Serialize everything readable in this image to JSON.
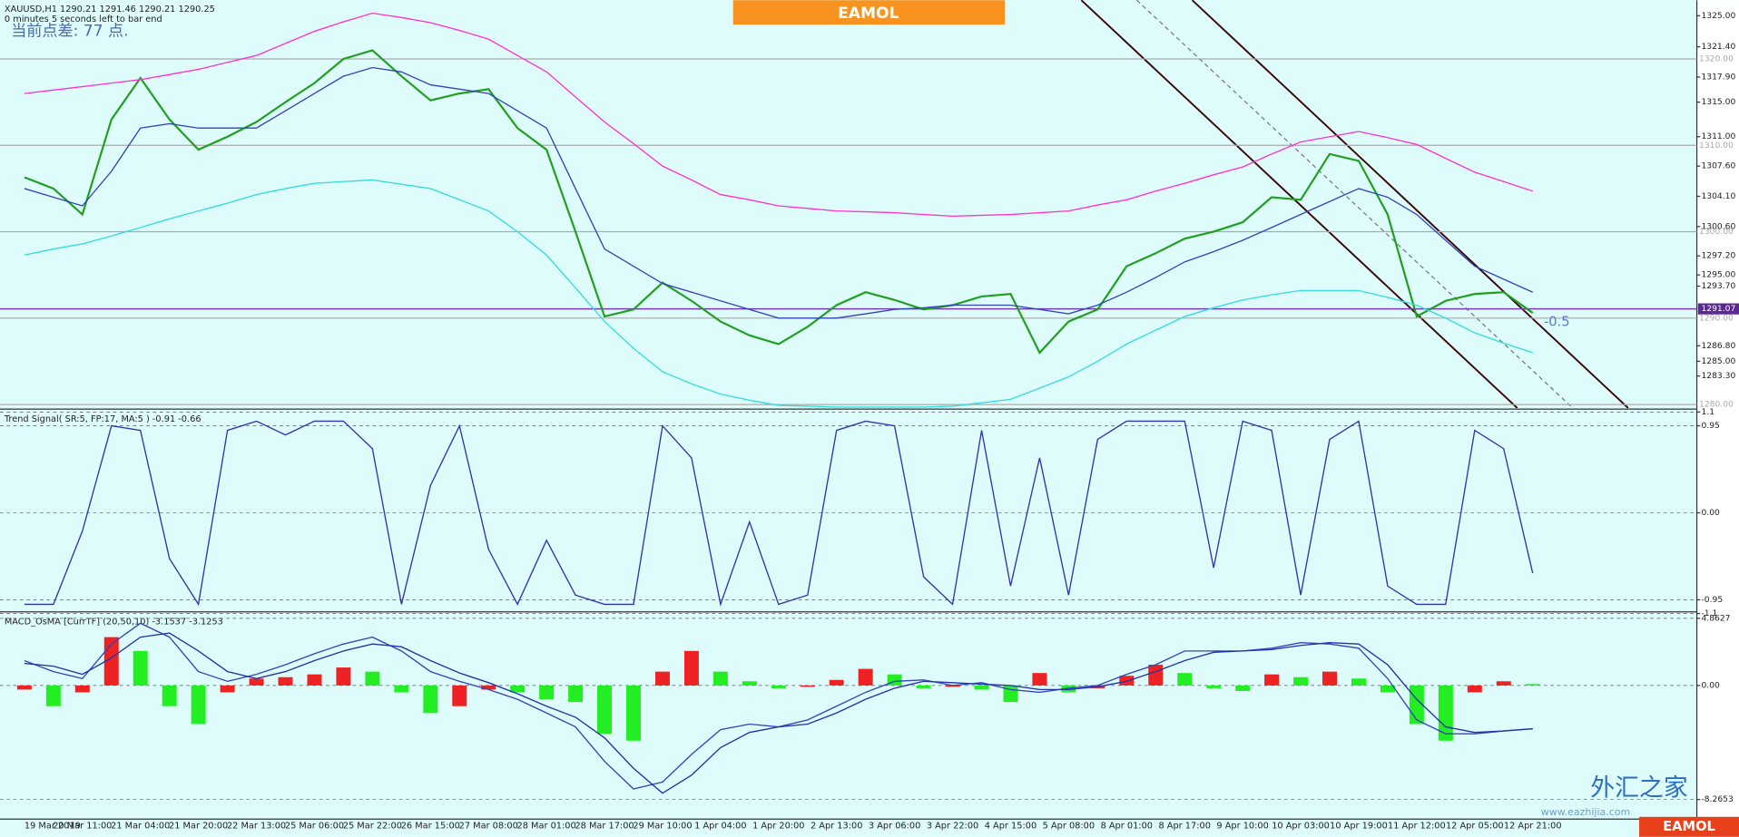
{
  "chart_data": [
    {
      "type": "line",
      "title": "XAUUSD,H1  1290.21 1291.46 1290.21 1290.25",
      "subtitle": "0 minutes 5 seconds left to bar end",
      "annotation": "当前点差: 77 点.",
      "level_note": "-0.5",
      "categories": [
        "19 Mar 2019",
        null,
        "20 Mar 11:00",
        null,
        "21 Mar 04:00",
        null,
        "21 Mar 20:00",
        null,
        "22 Mar 13:00",
        null,
        "25 Mar 06:00",
        null,
        "25 Mar 22:00",
        null,
        "26 Mar 15:00",
        null,
        "27 Mar 08:00",
        null,
        "28 Mar 01:00",
        null,
        "28 Mar 17:00",
        null,
        "29 Mar 10:00",
        null,
        "1 Apr 04:00",
        null,
        "1 Apr 20:00",
        null,
        "2 Apr 13:00",
        null,
        "3 Apr 06:00",
        null,
        "3 Apr 22:00",
        null,
        "4 Apr 15:00",
        null,
        "5 Apr 08:00",
        null,
        "8 Apr 01:00",
        null,
        "8 Apr 17:00",
        null,
        "9 Apr 10:00",
        null,
        "10 Apr 03:00",
        null,
        "10 Apr 19:00",
        null,
        "11 Apr 12:00",
        null,
        "12 Apr 05:00",
        null,
        "12 Apr 21:00"
      ],
      "series": [
        {
          "name": "Close",
          "color": "#1fa01f",
          "values": [
            1306.3,
            1305,
            1302,
            1313,
            1317.8,
            1313,
            1309.5,
            1311,
            1312.7,
            1315,
            1317.2,
            1320,
            1321,
            1318,
            1315.2,
            1316,
            1316.5,
            1312,
            1309.5,
            1300,
            1290.2,
            1291,
            1294.1,
            1292,
            1289.6,
            1288,
            1287,
            1289,
            1291.5,
            1293,
            1292.1,
            1291,
            1291.5,
            1292.5,
            1292.8,
            1286,
            1289.6,
            1291,
            1296,
            1297.5,
            1299.2,
            1300,
            1301.1,
            1304,
            1303.7,
            1309,
            1308.2,
            1302,
            1290.2,
            1292,
            1292.8,
            1293,
            1290.6
          ]
        },
        {
          "name": "Upper",
          "color": "#ff33cc",
          "values": [
            1316.0,
            1316.4,
            1316.8,
            1317.2,
            1317.6,
            1318.2,
            1318.8,
            1319.6,
            1320.4,
            1321.8,
            1323.2,
            1324.3,
            1325.3,
            1324.8,
            1324.2,
            1323.3,
            1322.3,
            1320.4,
            1318.5,
            1315.6,
            1312.7,
            1310.2,
            1307.6,
            1306.0,
            1304.3,
            1303.7,
            1303.0,
            1302.7,
            1302.4,
            1302.3,
            1302.2,
            1302.0,
            1301.8,
            1301.9,
            1302.0,
            1302.2,
            1302.4,
            1303.1,
            1303.7,
            1304.7,
            1305.6,
            1306.6,
            1307.5,
            1309.0,
            1310.4,
            1311.0,
            1311.6,
            1310.9,
            1310.1,
            1308.5,
            1306.9,
            1305.8,
            1304.7
          ]
        },
        {
          "name": "Lower",
          "color": "#33dddd",
          "values": [
            1297.3,
            1298.0,
            1298.6,
            1299.5,
            1300.5,
            1301.5,
            1302.4,
            1303.3,
            1304.3,
            1305.0,
            1305.6,
            1305.8,
            1306.0,
            1305.5,
            1305.0,
            1303.7,
            1302.4,
            1300.0,
            1297.3,
            1293.5,
            1289.6,
            1286.5,
            1283.8,
            1282.4,
            1281.2,
            1280.5,
            1279.9,
            1279.8,
            1279.7,
            1279.7,
            1279.7,
            1279.7,
            1279.8,
            1280.2,
            1280.6,
            1281.9,
            1283.2,
            1285.0,
            1287.0,
            1288.6,
            1290.2,
            1291.2,
            1292.1,
            1292.7,
            1293.2,
            1293.2,
            1293.2,
            1292.4,
            1291.5,
            1290.0,
            1288.3,
            1287.1,
            1286.0
          ]
        },
        {
          "name": "MA",
          "color": "#3344bb",
          "values": [
            1305,
            1304,
            1303,
            1307,
            1312,
            1312.5,
            1312,
            1312,
            1312,
            1314,
            1316,
            1318,
            1319,
            1318.5,
            1317,
            1316.5,
            1316,
            1314,
            1312,
            1305,
            1298,
            1296,
            1294,
            1293,
            1292,
            1291,
            1290,
            1290,
            1290,
            1290.5,
            1291,
            1291.2,
            1291.5,
            1291.5,
            1291.5,
            1291,
            1290.5,
            1291.5,
            1293,
            1294.7,
            1296.5,
            1297.7,
            1299,
            1300.5,
            1302,
            1303.5,
            1305,
            1304,
            1302,
            1299,
            1296,
            1294.5,
            1293
          ]
        }
      ],
      "ylim": [
        1279.6,
        1326.8
      ],
      "yticks": [
        {
          "value": 1325,
          "label": "1325.00"
        },
        {
          "value": 1321.4,
          "label": "1321.40"
        },
        {
          "value": 1317.9,
          "label": "1317.90"
        },
        {
          "value": 1315,
          "label": "1315.00"
        },
        {
          "value": 1311,
          "label": "1311.00"
        },
        {
          "value": 1307.6,
          "label": "1307.60"
        },
        {
          "value": 1304.1,
          "label": "1304.10"
        },
        {
          "value": 1300.6,
          "label": "1300.60"
        },
        {
          "value": 1297.2,
          "label": "1297.20"
        },
        {
          "value": 1295,
          "label": "1295.00"
        },
        {
          "value": 1293.7,
          "label": "1293.70"
        },
        {
          "value": 1286.8,
          "label": "1286.80"
        },
        {
          "value": 1285,
          "label": "1285.00"
        },
        {
          "value": 1283.3,
          "label": "1283.30"
        }
      ],
      "levels": [
        {
          "value": 1320,
          "label": "1320.00"
        },
        {
          "value": 1310,
          "label": "1310.00"
        },
        {
          "value": 1300,
          "label": "1300.00"
        },
        {
          "value": 1290,
          "label": "1290.00"
        },
        {
          "value": 1280,
          "label": "1280.00"
        }
      ],
      "current_price": {
        "value": 1291.07,
        "label": "1291.07"
      }
    },
    {
      "type": "line",
      "title": "Trend Signal( SR:5, FP:17, MA:5 ) -0.91 -0.66",
      "series": [
        {
          "name": "Trend Signal",
          "color": "#3333aa",
          "values": [
            -1.0,
            -1.0,
            -0.2,
            0.95,
            0.9,
            -0.5,
            -1.0,
            0.9,
            1.0,
            0.85,
            1.0,
            1.0,
            0.7,
            -1.0,
            0.3,
            0.95,
            -0.4,
            -1.0,
            -0.3,
            -0.9,
            -1.0,
            -1.0,
            0.95,
            0.6,
            -1.0,
            -0.1,
            -1.0,
            -0.9,
            0.9,
            1.0,
            0.95,
            -0.7,
            -1.0,
            0.9,
            -0.8,
            0.6,
            -0.9,
            0.8,
            1.0,
            1.0,
            1.0,
            -0.6,
            1.0,
            0.9,
            -0.9,
            0.8,
            1.0,
            -0.8,
            -1.0,
            -1.0,
            0.9,
            0.7,
            -0.66
          ]
        }
      ],
      "ylim": [
        -1.07,
        1.12
      ],
      "yticks": [
        1.1,
        0.95,
        {
          "value": 0,
          "label": "0.00"
        },
        -0.95,
        -1.1
      ]
    },
    {
      "type": "bar",
      "title": "MACD_OsMA [CurrTF] (20,50,10) -3.1537 -3.1253",
      "values": [
        -0.3,
        -1.5,
        -0.5,
        3.5,
        2.5,
        -1.5,
        -2.8,
        -0.5,
        0.5,
        0.6,
        0.8,
        1.3,
        1.0,
        -0.5,
        -2.0,
        -1.5,
        -0.3,
        -0.5,
        -1.0,
        -1.2,
        -3.5,
        -4.0,
        1.0,
        2.5,
        1.0,
        0.3,
        -0.2,
        -0.1,
        0.4,
        1.2,
        0.8,
        -0.2,
        -0.1,
        -0.3,
        -1.2,
        0.9,
        -0.5,
        -0.2,
        0.7,
        1.5,
        0.9,
        -0.2,
        -0.4,
        0.8,
        0.6,
        1.0,
        0.5,
        -0.5,
        -2.8,
        -4.0,
        -0.5,
        0.3,
        0.1
      ],
      "up_color": "#ee2222",
      "down_color": "#22ee22",
      "series": [
        {
          "name": "MACD",
          "color": "#3344bb",
          "values": [
            1.8,
            1.0,
            0.5,
            3.0,
            4.5,
            3.5,
            1.0,
            0.3,
            0.8,
            1.5,
            2.3,
            3.0,
            3.5,
            2.5,
            1.0,
            0.3,
            -0.3,
            -1.0,
            -2.0,
            -3.0,
            -5.5,
            -7.5,
            -7.0,
            -5.0,
            -3.2,
            -2.8,
            -3.0,
            -2.5,
            -1.5,
            -0.5,
            0.3,
            0.4,
            0.0,
            0.2,
            -0.3,
            -0.5,
            -0.2,
            0.0,
            0.8,
            1.5,
            2.5,
            2.5,
            2.5,
            2.7,
            3.1,
            3.0,
            2.7,
            0.5,
            -2.5,
            -3.5,
            -3.5,
            -3.3,
            -3.15
          ]
        },
        {
          "name": "Signal",
          "color": "#2233aa",
          "values": [
            1.6,
            1.4,
            0.8,
            2.0,
            3.5,
            3.8,
            2.5,
            1.0,
            0.5,
            1.0,
            1.8,
            2.5,
            3.0,
            2.8,
            1.8,
            0.9,
            0.2,
            -0.6,
            -1.5,
            -2.3,
            -3.8,
            -6.0,
            -7.8,
            -6.5,
            -4.5,
            -3.4,
            -3.0,
            -2.8,
            -2.0,
            -1.0,
            -0.2,
            0.3,
            0.2,
            0.1,
            0.0,
            -0.3,
            -0.3,
            -0.1,
            0.3,
            1.0,
            1.8,
            2.4,
            2.5,
            2.6,
            2.9,
            3.1,
            3.0,
            1.5,
            -1.0,
            -3.0,
            -3.4,
            -3.3,
            -3.13
          ]
        }
      ],
      "ylim": [
        -9.6,
        5.25
      ],
      "yticks": [
        4.8627,
        {
          "value": 0,
          "label": "0.00"
        },
        -8.2653
      ]
    }
  ],
  "branding": {
    "logo": "EAMOL",
    "watermark": "外汇之家",
    "site": "www.eazhijia.com"
  }
}
